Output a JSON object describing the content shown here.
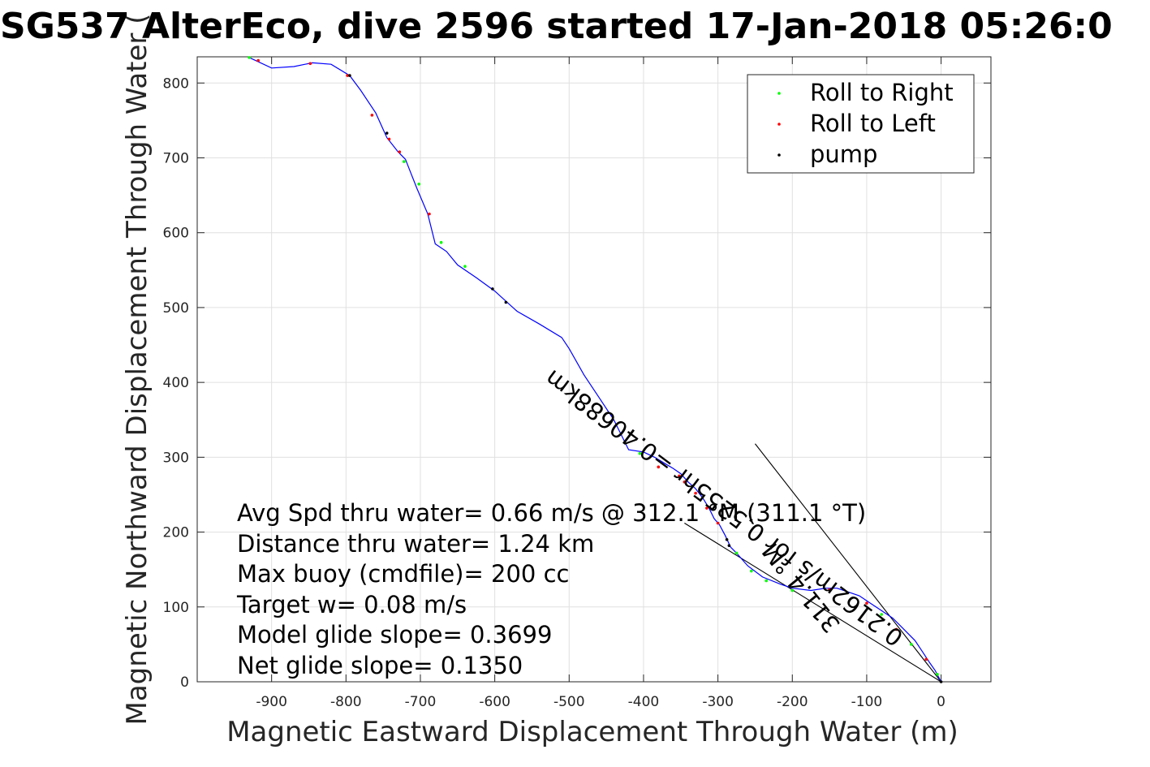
{
  "chart_data": {
    "type": "line",
    "title": "SG537 AlterEco, dive 2596 started 17-Jan-2018 05:26:0",
    "xlabel": "Magnetic Eastward Displacement Through Water (m)",
    "ylabel": "Magnetic Northward Displacement Through Water (",
    "xlim": [
      -1000,
      67
    ],
    "ylim": [
      0,
      835
    ],
    "xticks": [
      -900,
      -800,
      -700,
      -600,
      -500,
      -400,
      -300,
      -200,
      -100,
      0
    ],
    "yticks": [
      0,
      100,
      200,
      300,
      400,
      500,
      600,
      700,
      800
    ],
    "grid": true,
    "legend_position": "top-right",
    "legend": [
      "Roll to Right",
      "Roll to Left",
      "pump"
    ],
    "colors": {
      "track": "#0000ff",
      "roll_right": "#00ff00",
      "roll_left": "#ff0000",
      "pump": "#000000",
      "overlap": "#8b0060"
    },
    "track": {
      "name": "track",
      "x": [
        0,
        -8,
        -15,
        -25,
        -35,
        -50,
        -65,
        -80,
        -95,
        -110,
        -125,
        -140,
        -155,
        -175,
        -200,
        -215,
        -240,
        -260,
        -275,
        -283,
        -290,
        -298,
        -305,
        -312,
        -320,
        -330,
        -340,
        -350,
        -360,
        -372,
        -385,
        -400,
        -420,
        -440,
        -460,
        -480,
        -500,
        -510,
        -540,
        -570,
        -600,
        -625,
        -650,
        -665,
        -680,
        -690,
        -705,
        -720,
        -730,
        -745,
        -760,
        -780,
        -795,
        -820,
        -845,
        -855,
        -870,
        -900,
        -930
      ],
      "y": [
        0,
        15,
        25,
        40,
        55,
        70,
        85,
        95,
        105,
        115,
        120,
        125,
        125,
        122,
        125,
        130,
        140,
        155,
        172,
        180,
        195,
        210,
        218,
        232,
        245,
        258,
        267,
        278,
        285,
        292,
        300,
        307,
        310,
        350,
        380,
        410,
        445,
        460,
        478,
        495,
        522,
        540,
        557,
        575,
        585,
        625,
        660,
        698,
        708,
        727,
        760,
        790,
        810,
        825,
        827,
        825,
        822,
        820,
        834
      ]
    },
    "roll_right": {
      "x": [
        -5,
        -40,
        -80,
        -200,
        -235,
        -255,
        -275,
        -405,
        -640,
        -672,
        -702,
        -722,
        -930
      ],
      "y": [
        10,
        50,
        90,
        122,
        135,
        148,
        172,
        305,
        555,
        587,
        665,
        695,
        834
      ]
    },
    "roll_left": {
      "x": [
        -20,
        -60,
        -100,
        -150,
        -300,
        -315,
        -330,
        -345,
        -352,
        -380,
        -688,
        -728,
        -742,
        -765,
        -798,
        -848,
        -918
      ],
      "y": [
        30,
        70,
        105,
        123,
        212,
        232,
        252,
        267,
        275,
        287,
        625,
        708,
        725,
        757,
        810,
        826,
        830
      ]
    },
    "pump": {
      "x": [
        0,
        -285,
        -288,
        -585,
        -603,
        -745,
        -795
      ],
      "y": [
        0,
        182,
        190,
        507,
        525,
        733,
        810
      ]
    },
    "guide_lines": [
      {
        "x": [
          0,
          -250
        ],
        "y": [
          0,
          318
        ]
      },
      {
        "x": [
          0,
          -345
        ],
        "y": [
          0,
          212
        ]
      }
    ],
    "annotations": [
      "Avg Spd thru water=  0.66 m/s @ 312.1 °M (311.1 °T)",
      "Distance thru water=  1.24 km",
      "Max buoy (cmdfile)= 200 cc",
      "Target w= 0.08 m/s",
      "Model glide slope= 0.3699",
      "Net glide slope= 0.1350"
    ],
    "rotated_labels": [
      "0.2162m/s for 0.5255hr =0.40688km",
      "311.4 °M"
    ]
  }
}
